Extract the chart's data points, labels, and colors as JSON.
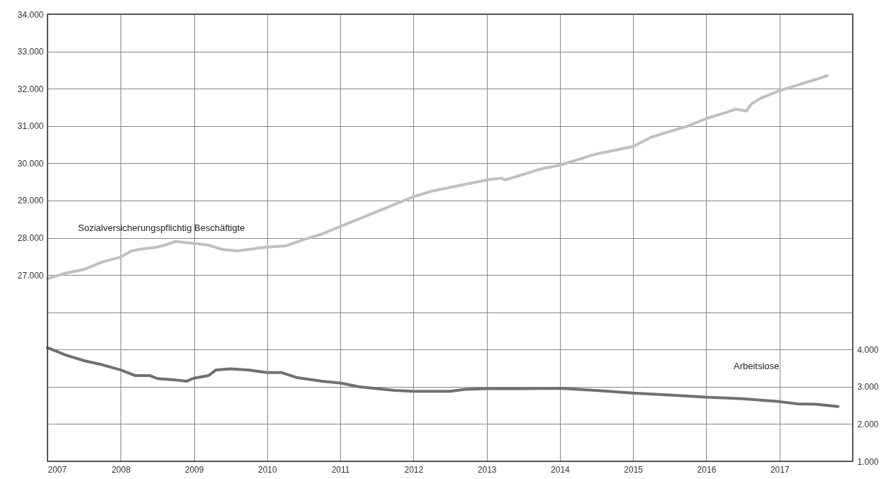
{
  "chart_data": {
    "type": "line",
    "line_style": "solid",
    "grid": true,
    "xlim": [
      2007,
      2018
    ],
    "xticks": [
      2007,
      2008,
      2009,
      2010,
      2011,
      2012,
      2013,
      2014,
      2015,
      2016,
      2017,
      {
        "value": 2018,
        "label": null
      }
    ],
    "ylim": [
      22000,
      34000
    ],
    "yticks": [
      {
        "value": 22000,
        "label": null
      },
      {
        "value": 23000,
        "label": null
      },
      {
        "value": 24000,
        "label": null
      },
      {
        "value": 25000,
        "label": null
      },
      {
        "value": 26000,
        "label": null
      },
      {
        "value": 27000,
        "label": "27.000"
      },
      {
        "value": 28000,
        "label": "28.000"
      },
      {
        "value": 29000,
        "label": "29.000"
      },
      {
        "value": 30000,
        "label": "30.000"
      },
      {
        "value": 31000,
        "label": "31.000"
      },
      {
        "value": 32000,
        "label": "32.000"
      },
      {
        "value": 33000,
        "label": "33.000"
      },
      {
        "value": 34000,
        "label": "34.000"
      }
    ],
    "y2lim": [
      1000,
      13000
    ],
    "y2ticks": [
      {
        "value": 1000,
        "label": "1.000"
      },
      {
        "value": 2000,
        "label": "2.000"
      },
      {
        "value": 3000,
        "label": "3.000"
      },
      {
        "value": 4000,
        "label": "4.000"
      },
      {
        "value": 5000,
        "label": null
      },
      {
        "value": 6000,
        "label": null
      },
      {
        "value": 7000,
        "label": null
      },
      {
        "value": 8000,
        "label": null
      },
      {
        "value": 9000,
        "label": null
      },
      {
        "value": 10000,
        "label": null
      },
      {
        "value": 11000,
        "label": null
      },
      {
        "value": 12000,
        "label": null
      },
      {
        "value": 13000,
        "label": null
      }
    ],
    "series": [
      {
        "name": "Sozialversicherungspflichtig  Beschäftigte",
        "color": "#c0c0c0",
        "axis": "y",
        "x": [
          2007.0,
          2007.25,
          2007.5,
          2007.75,
          2008.0,
          2008.15,
          2008.3,
          2008.5,
          2008.6,
          2008.75,
          2009.0,
          2009.2,
          2009.4,
          2009.6,
          2009.8,
          2010.0,
          2010.25,
          2010.5,
          2010.75,
          2011.0,
          2011.25,
          2011.5,
          2011.75,
          2012.0,
          2012.25,
          2012.5,
          2012.75,
          2013.0,
          2013.2,
          2013.25,
          2013.5,
          2013.75,
          2014.0,
          2014.25,
          2014.5,
          2014.75,
          2015.0,
          2015.25,
          2015.5,
          2015.75,
          2016.0,
          2016.25,
          2016.4,
          2016.55,
          2016.62,
          2016.75,
          2017.0,
          2017.25,
          2017.5,
          2017.65
        ],
        "values": [
          26900,
          27050,
          27150,
          27350,
          27480,
          27650,
          27700,
          27750,
          27800,
          27900,
          27850,
          27800,
          27680,
          27650,
          27700,
          27750,
          27780,
          27950,
          28100,
          28300,
          28500,
          28700,
          28900,
          29100,
          29250,
          29350,
          29450,
          29550,
          29600,
          29550,
          29700,
          29850,
          29950,
          30100,
          30250,
          30350,
          30450,
          30700,
          30850,
          31000,
          31200,
          31350,
          31450,
          31400,
          31600,
          31750,
          31950,
          32100,
          32250,
          32350
        ]
      },
      {
        "name": "Arbeitslose",
        "color": "#707070",
        "axis": "y2",
        "x": [
          2007.0,
          2007.25,
          2007.5,
          2007.75,
          2008.0,
          2008.2,
          2008.4,
          2008.5,
          2008.75,
          2008.9,
          2009.0,
          2009.2,
          2009.3,
          2009.5,
          2009.75,
          2010.0,
          2010.2,
          2010.4,
          2010.75,
          2011.0,
          2011.25,
          2011.5,
          2011.75,
          2012.0,
          2012.5,
          2012.7,
          2013.0,
          2013.5,
          2014.0,
          2014.5,
          2015.0,
          2015.5,
          2016.0,
          2016.5,
          2017.0,
          2017.25,
          2017.5,
          2017.8
        ],
        "values": [
          4050,
          3850,
          3700,
          3590,
          3450,
          3300,
          3300,
          3220,
          3180,
          3150,
          3230,
          3300,
          3450,
          3480,
          3450,
          3380,
          3380,
          3250,
          3150,
          3100,
          3000,
          2950,
          2900,
          2880,
          2880,
          2930,
          2950,
          2950,
          2960,
          2900,
          2830,
          2780,
          2720,
          2680,
          2600,
          2540,
          2530,
          2470
        ]
      }
    ]
  }
}
